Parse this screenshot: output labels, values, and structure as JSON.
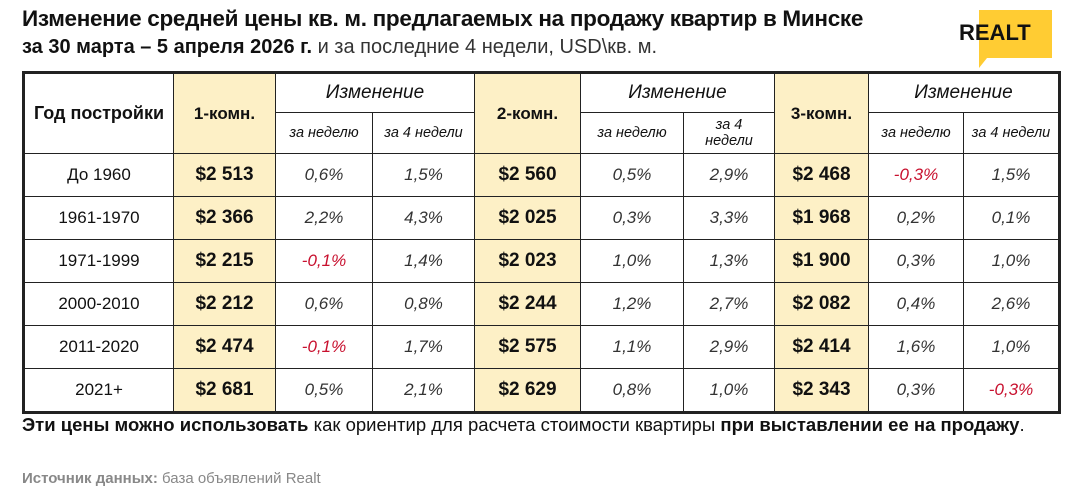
{
  "header": {
    "title": "Изменение средней цены кв. м. предлагаемых на продажу квартир в Минске",
    "subtitle_bold": "за 30 марта – 5 апреля 2026 г.",
    "subtitle_rest": " и за последние 4 недели, USD\\кв. м."
  },
  "logo": {
    "text": "REALT",
    "color": "#FFCC33"
  },
  "colors": {
    "price_bg": "#FDF0C6",
    "negative": "#C8102E"
  },
  "chart_data": {
    "type": "table",
    "columns": {
      "year": "Год постройки",
      "room1": "1-комн.",
      "room2": "2-комн.",
      "room3": "3-комн.",
      "change": "Изменение",
      "week": "за неделю",
      "four_weeks": "за 4 недели"
    },
    "rows": [
      {
        "year": "До 1960",
        "r1": "$2 513",
        "r1w": "0,6%",
        "r1m": "1,5%",
        "r2": "$2 560",
        "r2w": "0,5%",
        "r2m": "2,9%",
        "r3": "$2 468",
        "r3w": "-0,3%",
        "r3m": "1,5%"
      },
      {
        "year": "1961-1970",
        "r1": "$2 366",
        "r1w": "2,2%",
        "r1m": "4,3%",
        "r2": "$2 025",
        "r2w": "0,3%",
        "r2m": "3,3%",
        "r3": "$1 968",
        "r3w": "0,2%",
        "r3m": "0,1%"
      },
      {
        "year": "1971-1999",
        "r1": "$2 215",
        "r1w": "-0,1%",
        "r1m": "1,4%",
        "r2": "$2 023",
        "r2w": "1,0%",
        "r2m": "1,3%",
        "r3": "$1 900",
        "r3w": "0,3%",
        "r3m": "1,0%"
      },
      {
        "year": "2000-2010",
        "r1": "$2 212",
        "r1w": "0,6%",
        "r1m": "0,8%",
        "r2": "$2 244",
        "r2w": "1,2%",
        "r2m": "2,7%",
        "r3": "$2 082",
        "r3w": "0,4%",
        "r3m": "2,6%"
      },
      {
        "year": "2011-2020",
        "r1": "$2 474",
        "r1w": "-0,1%",
        "r1m": "1,7%",
        "r2": "$2 575",
        "r2w": "1,1%",
        "r2m": "2,9%",
        "r3": "$2 414",
        "r3w": "1,6%",
        "r3m": "1,0%"
      },
      {
        "year": "2021+",
        "r1": "$2 681",
        "r1w": "0,5%",
        "r1m": "2,1%",
        "r2": "$2 629",
        "r2w": "0,8%",
        "r2m": "1,0%",
        "r3": "$2 343",
        "r3w": "0,3%",
        "r3m": "-0,3%"
      }
    ]
  },
  "footer": {
    "note_bold1": "Эти цены можно использовать",
    "note_mid": " как ориентир для расчета стоимости квартиры ",
    "note_bold2": "при выставлении ее на продажу",
    "note_end": ".",
    "source_label": "Источник данных:",
    "source_value": " база объявлений Realt"
  }
}
